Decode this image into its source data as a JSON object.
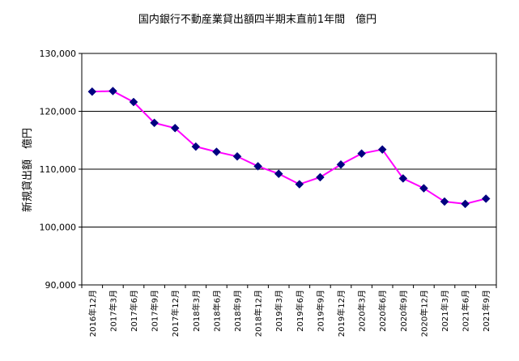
{
  "chart_data": {
    "type": "line",
    "title": "国内銀行不動産業貸出額四半期末直前1年間　億円",
    "ylabel": "新規貸出額　億円",
    "xlabel": "",
    "categories": [
      "2016年12月",
      "2017年3月",
      "2017年6月",
      "2017年9月",
      "2017年12月",
      "2018年3月",
      "2018年6月",
      "2018年9月",
      "2018年12月",
      "2019年3月",
      "2019年6月",
      "2019年9月",
      "2019年12月",
      "2020年3月",
      "2020年6月",
      "2020年9月",
      "2020年12月",
      "2021年3月",
      "2021年6月",
      "2021年9月"
    ],
    "yticks": [
      "90,000",
      "100,000",
      "110,000",
      "120,000",
      "130,000"
    ],
    "ylim": [
      90000,
      130000
    ],
    "series": [
      {
        "values": [
          123400,
          123500,
          121600,
          118000,
          117100,
          113900,
          113000,
          112200,
          110500,
          109200,
          107400,
          108600,
          110800,
          112700,
          113400,
          108400,
          106700,
          104400,
          104000,
          104900
        ],
        "line_color": "#ff00ff",
        "marker_color": "#000080",
        "marker": "diamond"
      }
    ],
    "grid": "horizontal",
    "legend": "none"
  }
}
